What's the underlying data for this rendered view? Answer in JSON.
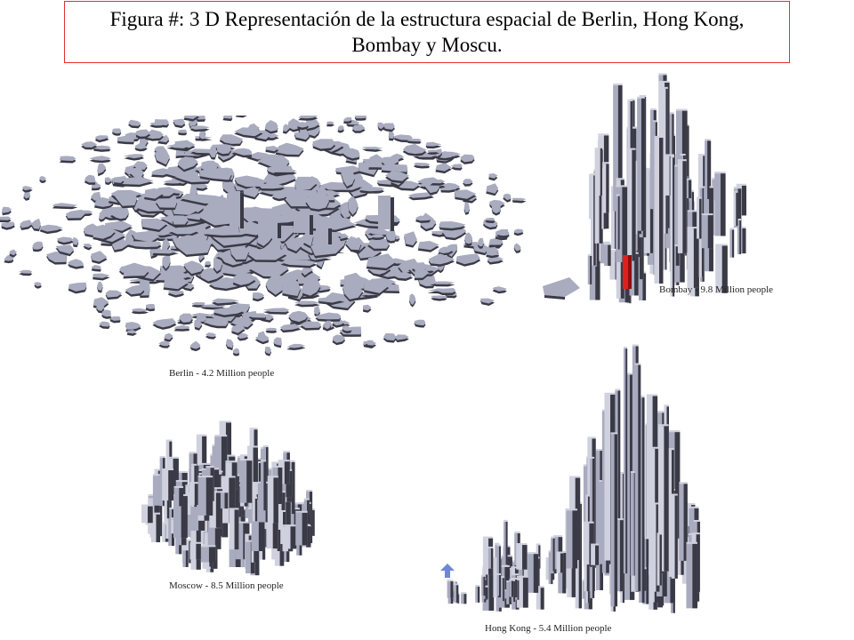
{
  "figure": {
    "title": "Figura #: 3 D Representación de la estructura espacial de Berlin, Hong Kong, Bombay y Moscu."
  },
  "panels": [
    {
      "id": "berlin",
      "caption": "Berlin - 4.2 Million people"
    },
    {
      "id": "bombay",
      "caption": "Bombay - 9.8 Million people"
    },
    {
      "id": "moscow",
      "caption": "Moscow - 8.5 Million people"
    },
    {
      "id": "hongkong",
      "caption": "Hong Kong - 5.4 Million people"
    }
  ],
  "colors": {
    "title_border": "#e03030",
    "block_top": "#a9abbf",
    "block_side": "#3a3a46",
    "block_light": "#cfd1de",
    "highlight": "#e02020",
    "arrow": "#6f86d6"
  }
}
